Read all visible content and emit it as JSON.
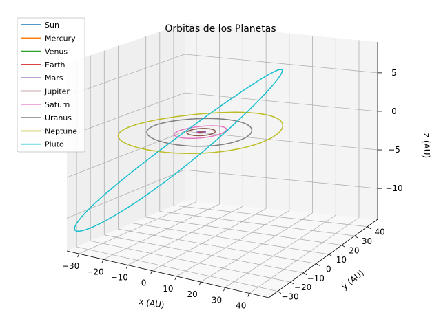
{
  "chart_data": {
    "type": "line",
    "projection": "3d",
    "title": "Orbitas de los Planetas",
    "xlabel": "x (AU)",
    "ylabel": "y (AU)",
    "zlabel": "z (AU)",
    "xlim": [
      -35,
      48
    ],
    "ylim": [
      -37,
      48
    ],
    "zlim": [
      -14,
      9
    ],
    "xticks": [
      -30,
      -20,
      -10,
      0,
      10,
      20,
      30,
      40
    ],
    "yticks": [
      -30,
      -20,
      -10,
      0,
      10,
      20,
      30,
      40
    ],
    "zticks": [
      -10,
      -5,
      0,
      5
    ],
    "grid": true,
    "legend_position": "upper-left",
    "series": [
      {
        "name": "Sun",
        "color": "#1f77b4",
        "a": 0.0,
        "e": 0.0,
        "inclination_deg": 0.0,
        "kind": "point"
      },
      {
        "name": "Mercury",
        "color": "#ff7f0e",
        "a": 0.387,
        "e": 0.206,
        "inclination_deg": 7.0
      },
      {
        "name": "Venus",
        "color": "#2ca02c",
        "a": 0.723,
        "e": 0.007,
        "inclination_deg": 3.4
      },
      {
        "name": "Earth",
        "color": "#d62728",
        "a": 1.0,
        "e": 0.017,
        "inclination_deg": 0.0
      },
      {
        "name": "Mars",
        "color": "#9467bd",
        "a": 1.524,
        "e": 0.093,
        "inclination_deg": 1.85
      },
      {
        "name": "Jupiter",
        "color": "#8c564b",
        "a": 5.203,
        "e": 0.048,
        "inclination_deg": 1.3
      },
      {
        "name": "Saturn",
        "color": "#e377c2",
        "a": 9.537,
        "e": 0.054,
        "inclination_deg": 2.49
      },
      {
        "name": "Uranus",
        "color": "#7f7f7f",
        "a": 19.19,
        "e": 0.047,
        "inclination_deg": 0.77
      },
      {
        "name": "Neptune",
        "color": "#bcbd22",
        "a": 30.07,
        "e": 0.009,
        "inclination_deg": 1.77
      },
      {
        "name": "Pluto",
        "color": "#17becf",
        "a": 39.48,
        "e": 0.249,
        "inclination_deg": 17.16
      }
    ]
  }
}
